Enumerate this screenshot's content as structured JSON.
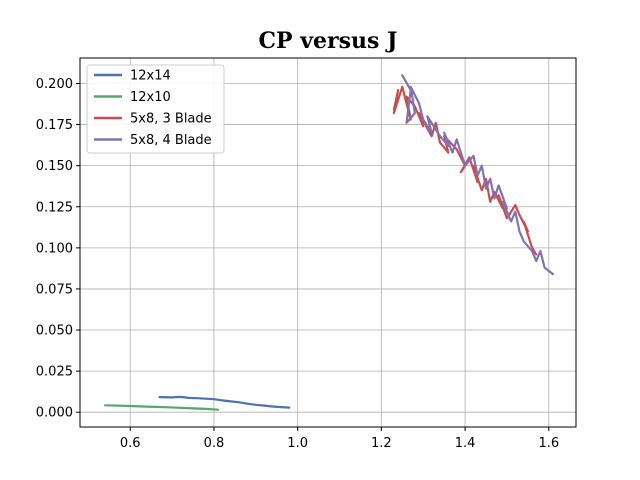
{
  "chart_data": {
    "type": "line",
    "title": "CP versus J",
    "xlabel": "",
    "ylabel": "",
    "xlim": [
      0.48,
      1.665
    ],
    "ylim": [
      -0.009,
      0.2155
    ],
    "xticks": [
      0.6,
      0.8,
      1.0,
      1.2,
      1.4,
      1.6
    ],
    "xtick_labels": [
      "0.6",
      "0.8",
      "1.0",
      "1.2",
      "1.4",
      "1.6"
    ],
    "yticks": [
      0.0,
      0.025,
      0.05,
      0.075,
      0.1,
      0.125,
      0.15,
      0.175,
      0.2
    ],
    "ytick_labels": [
      "0.000",
      "0.025",
      "0.050",
      "0.075",
      "0.100",
      "0.125",
      "0.150",
      "0.175",
      "0.200"
    ],
    "grid": true,
    "legend_position": "top-left",
    "series": [
      {
        "name": "12x14",
        "color": "#4c72b0",
        "points": [
          [
            0.67,
            0.0092
          ],
          [
            0.7,
            0.009
          ],
          [
            0.72,
            0.0093
          ],
          [
            0.74,
            0.0087
          ],
          [
            0.76,
            0.0085
          ],
          [
            0.78,
            0.0082
          ],
          [
            0.8,
            0.0079
          ],
          [
            0.82,
            0.0072
          ],
          [
            0.84,
            0.0066
          ],
          [
            0.86,
            0.006
          ],
          [
            0.88,
            0.0052
          ],
          [
            0.9,
            0.0045
          ],
          [
            0.92,
            0.004
          ],
          [
            0.94,
            0.0035
          ],
          [
            0.96,
            0.0031
          ],
          [
            0.98,
            0.0028
          ]
        ]
      },
      {
        "name": "12x10",
        "color": "#55a868",
        "points": [
          [
            0.54,
            0.0042
          ],
          [
            0.57,
            0.004
          ],
          [
            0.6,
            0.0038
          ],
          [
            0.63,
            0.0035
          ],
          [
            0.66,
            0.0032
          ],
          [
            0.69,
            0.003
          ],
          [
            0.72,
            0.0027
          ],
          [
            0.75,
            0.0023
          ],
          [
            0.78,
            0.002
          ],
          [
            0.81,
            0.0015
          ]
        ]
      },
      {
        "name": "5x8, 3 Blade",
        "color": "#c44e52",
        "points": [
          [
            1.23,
            0.184
          ],
          [
            1.24,
            0.196
          ],
          [
            1.23,
            0.182
          ],
          [
            1.25,
            0.198
          ],
          [
            1.26,
            0.188
          ],
          [
            1.27,
            0.178
          ],
          [
            1.26,
            0.192
          ],
          [
            1.28,
            0.186
          ],
          [
            1.3,
            0.174
          ],
          [
            1.29,
            0.182
          ],
          [
            1.32,
            0.168
          ],
          [
            1.33,
            0.176
          ],
          [
            1.34,
            0.164
          ],
          [
            1.36,
            0.158
          ],
          [
            1.35,
            0.168
          ],
          [
            1.38,
            0.16
          ],
          [
            1.4,
            0.15
          ],
          [
            1.39,
            0.146
          ],
          [
            1.41,
            0.155
          ],
          [
            1.43,
            0.14
          ],
          [
            1.42,
            0.15
          ],
          [
            1.44,
            0.135
          ],
          [
            1.45,
            0.142
          ],
          [
            1.46,
            0.128
          ],
          [
            1.47,
            0.134
          ],
          [
            1.49,
            0.124
          ],
          [
            1.48,
            0.132
          ],
          [
            1.5,
            0.118
          ],
          [
            1.52,
            0.126
          ],
          [
            1.53,
            0.12
          ],
          [
            1.55,
            0.11
          ],
          [
            1.54,
            0.116
          ],
          [
            1.56,
            0.1
          ],
          [
            1.57,
            0.096
          ]
        ]
      },
      {
        "name": "5x8, 4 Blade",
        "color": "#8172b2",
        "points": [
          [
            1.25,
            0.205
          ],
          [
            1.27,
            0.196
          ],
          [
            1.26,
            0.176
          ],
          [
            1.28,
            0.182
          ],
          [
            1.27,
            0.198
          ],
          [
            1.29,
            0.188
          ],
          [
            1.3,
            0.178
          ],
          [
            1.32,
            0.17
          ],
          [
            1.31,
            0.18
          ],
          [
            1.34,
            0.168
          ],
          [
            1.36,
            0.162
          ],
          [
            1.35,
            0.17
          ],
          [
            1.37,
            0.158
          ],
          [
            1.38,
            0.166
          ],
          [
            1.4,
            0.15
          ],
          [
            1.42,
            0.156
          ],
          [
            1.43,
            0.144
          ],
          [
            1.44,
            0.15
          ],
          [
            1.45,
            0.136
          ],
          [
            1.46,
            0.142
          ],
          [
            1.47,
            0.13
          ],
          [
            1.48,
            0.138
          ],
          [
            1.5,
            0.124
          ],
          [
            1.49,
            0.128
          ],
          [
            1.51,
            0.116
          ],
          [
            1.52,
            0.122
          ],
          [
            1.53,
            0.11
          ],
          [
            1.54,
            0.104
          ],
          [
            1.56,
            0.098
          ],
          [
            1.57,
            0.092
          ],
          [
            1.58,
            0.098
          ],
          [
            1.59,
            0.088
          ],
          [
            1.61,
            0.084
          ]
        ]
      }
    ]
  }
}
